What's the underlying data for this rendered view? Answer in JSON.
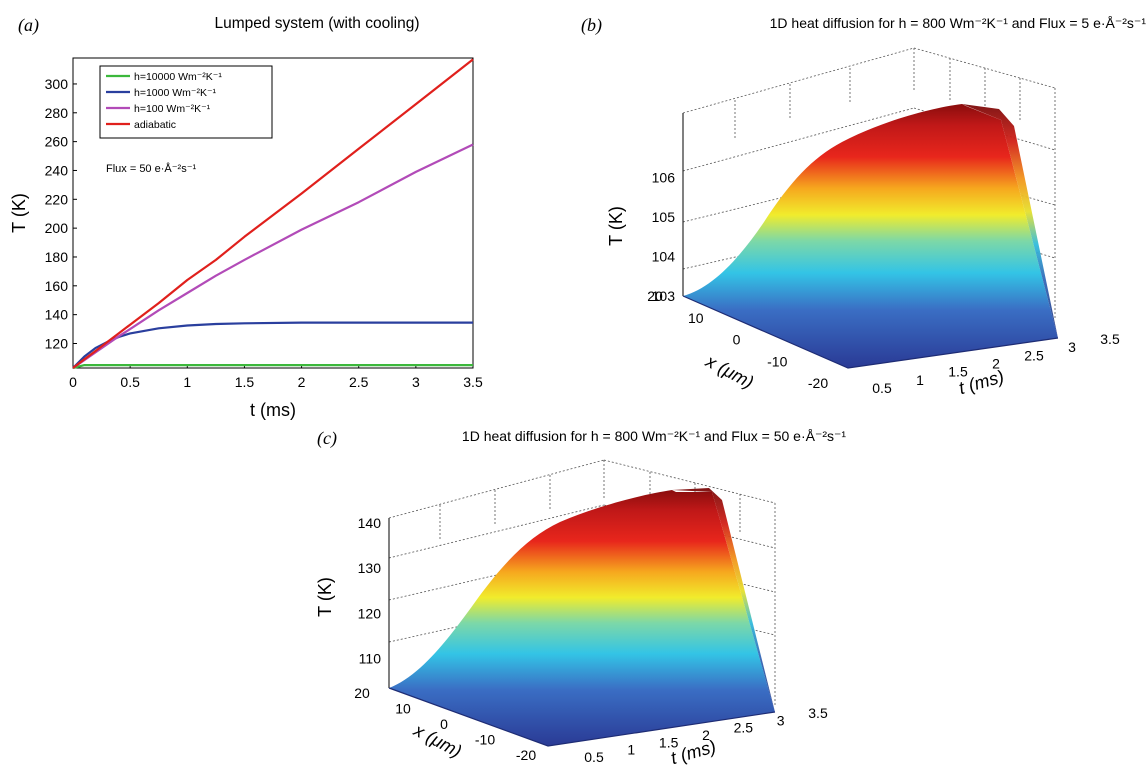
{
  "colors": {
    "h10000": "#3cb83c",
    "h1000": "#2a3f9e",
    "h100": "#b24bb8",
    "adiabatic": "#e0201c",
    "surface_low": "#2a3a95",
    "surface_high": "#8a0d0d"
  },
  "chart_data": [
    {
      "panel_label": "(a)",
      "type": "line",
      "title": "Lumped system (with cooling)",
      "xlabel": "t (ms)",
      "ylabel": "T (K)",
      "xlim": [
        0,
        3.5
      ],
      "ylim": [
        103,
        318
      ],
      "xticks": [
        "0",
        "0.5",
        "1",
        "1.5",
        "2",
        "2.5",
        "3",
        "3.5"
      ],
      "yticks": [
        "120",
        "140",
        "160",
        "180",
        "200",
        "220",
        "240",
        "260",
        "280",
        "300"
      ],
      "annotation": "Flux = 50 e·Å⁻²s⁻¹",
      "legend_position": "top-left",
      "x": [
        0,
        0.1,
        0.2,
        0.3,
        0.4,
        0.5,
        0.75,
        1.0,
        1.25,
        1.5,
        2.0,
        2.5,
        3.0,
        3.5
      ],
      "series": [
        {
          "name": "h=10000 Wm⁻²K⁻¹",
          "color_key": "h10000",
          "values": [
            103,
            105,
            105,
            105,
            105,
            105,
            105,
            105,
            105,
            105,
            105,
            105,
            105,
            105
          ]
        },
        {
          "name": "h=1000   Wm⁻²K⁻¹",
          "color_key": "h1000",
          "values": [
            103,
            111,
            117,
            121,
            124.5,
            127,
            130.5,
            132.5,
            133.5,
            134,
            134.5,
            134.5,
            134.5,
            134.5
          ]
        },
        {
          "name": "h=100     Wm⁻²K⁻¹",
          "color_key": "h100",
          "values": [
            103,
            108.5,
            114,
            119.5,
            125,
            130,
            143,
            155,
            167,
            178,
            199,
            218,
            239,
            258
          ]
        },
        {
          "name": "adiabatic",
          "color_key": "adiabatic",
          "values": [
            103,
            109,
            115,
            121,
            127,
            133,
            148,
            164,
            178,
            194,
            224,
            255,
            286,
            317
          ]
        }
      ]
    },
    {
      "panel_label": "(b)",
      "type": "surface",
      "title": "1D heat diffusion for h = 800 Wm⁻²K⁻¹ and Flux = 5 e·Å⁻²s⁻¹",
      "xlabel": "x (μm)",
      "ylabel": "t (ms)",
      "zlabel": "T (K)",
      "xticks": [
        "20",
        "10",
        "0",
        "-10",
        "-20"
      ],
      "tticks": [
        "0.5",
        "1",
        "1.5",
        "2",
        "2.5",
        "3",
        "3.5"
      ],
      "zticks": [
        "103",
        "104",
        "105",
        "106"
      ],
      "zlim": [
        103,
        106.6
      ]
    },
    {
      "panel_label": "(c)",
      "type": "surface",
      "title": "1D heat diffusion for h = 800 Wm⁻²K⁻¹ and Flux = 50 e·Å⁻²s⁻¹",
      "xlabel": "x (μm)",
      "ylabel": "t (ms)",
      "zlabel": "T (K)",
      "xticks": [
        "20",
        "10",
        "0",
        "-10",
        "-20"
      ],
      "tticks": [
        "0.5",
        "1",
        "1.5",
        "2",
        "2.5",
        "3",
        "3.5"
      ],
      "zticks": [
        "110",
        "120",
        "130",
        "140"
      ],
      "zlim": [
        103,
        144
      ]
    }
  ]
}
